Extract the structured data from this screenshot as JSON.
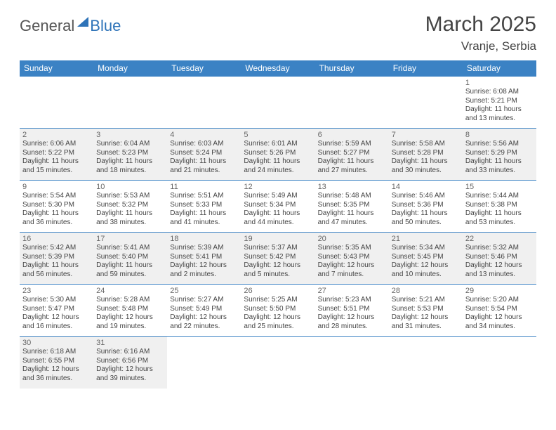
{
  "logo": {
    "part1": "General",
    "part2": "Blue"
  },
  "title": "March 2025",
  "location": "Vranje, Serbia",
  "dayHeaders": [
    "Sunday",
    "Monday",
    "Tuesday",
    "Wednesday",
    "Thursday",
    "Friday",
    "Saturday"
  ],
  "colors": {
    "header_bg": "#3b82c4",
    "accent": "#2e73b8",
    "shade": "#f0f0f0"
  },
  "weeks": [
    {
      "shaded": false,
      "days": [
        null,
        null,
        null,
        null,
        null,
        null,
        {
          "n": "1",
          "sunrise": "Sunrise: 6:08 AM",
          "sunset": "Sunset: 5:21 PM",
          "day1": "Daylight: 11 hours",
          "day2": "and 13 minutes."
        }
      ]
    },
    {
      "shaded": true,
      "days": [
        {
          "n": "2",
          "sunrise": "Sunrise: 6:06 AM",
          "sunset": "Sunset: 5:22 PM",
          "day1": "Daylight: 11 hours",
          "day2": "and 15 minutes."
        },
        {
          "n": "3",
          "sunrise": "Sunrise: 6:04 AM",
          "sunset": "Sunset: 5:23 PM",
          "day1": "Daylight: 11 hours",
          "day2": "and 18 minutes."
        },
        {
          "n": "4",
          "sunrise": "Sunrise: 6:03 AM",
          "sunset": "Sunset: 5:24 PM",
          "day1": "Daylight: 11 hours",
          "day2": "and 21 minutes."
        },
        {
          "n": "5",
          "sunrise": "Sunrise: 6:01 AM",
          "sunset": "Sunset: 5:26 PM",
          "day1": "Daylight: 11 hours",
          "day2": "and 24 minutes."
        },
        {
          "n": "6",
          "sunrise": "Sunrise: 5:59 AM",
          "sunset": "Sunset: 5:27 PM",
          "day1": "Daylight: 11 hours",
          "day2": "and 27 minutes."
        },
        {
          "n": "7",
          "sunrise": "Sunrise: 5:58 AM",
          "sunset": "Sunset: 5:28 PM",
          "day1": "Daylight: 11 hours",
          "day2": "and 30 minutes."
        },
        {
          "n": "8",
          "sunrise": "Sunrise: 5:56 AM",
          "sunset": "Sunset: 5:29 PM",
          "day1": "Daylight: 11 hours",
          "day2": "and 33 minutes."
        }
      ]
    },
    {
      "shaded": false,
      "days": [
        {
          "n": "9",
          "sunrise": "Sunrise: 5:54 AM",
          "sunset": "Sunset: 5:30 PM",
          "day1": "Daylight: 11 hours",
          "day2": "and 36 minutes."
        },
        {
          "n": "10",
          "sunrise": "Sunrise: 5:53 AM",
          "sunset": "Sunset: 5:32 PM",
          "day1": "Daylight: 11 hours",
          "day2": "and 38 minutes."
        },
        {
          "n": "11",
          "sunrise": "Sunrise: 5:51 AM",
          "sunset": "Sunset: 5:33 PM",
          "day1": "Daylight: 11 hours",
          "day2": "and 41 minutes."
        },
        {
          "n": "12",
          "sunrise": "Sunrise: 5:49 AM",
          "sunset": "Sunset: 5:34 PM",
          "day1": "Daylight: 11 hours",
          "day2": "and 44 minutes."
        },
        {
          "n": "13",
          "sunrise": "Sunrise: 5:48 AM",
          "sunset": "Sunset: 5:35 PM",
          "day1": "Daylight: 11 hours",
          "day2": "and 47 minutes."
        },
        {
          "n": "14",
          "sunrise": "Sunrise: 5:46 AM",
          "sunset": "Sunset: 5:36 PM",
          "day1": "Daylight: 11 hours",
          "day2": "and 50 minutes."
        },
        {
          "n": "15",
          "sunrise": "Sunrise: 5:44 AM",
          "sunset": "Sunset: 5:38 PM",
          "day1": "Daylight: 11 hours",
          "day2": "and 53 minutes."
        }
      ]
    },
    {
      "shaded": true,
      "days": [
        {
          "n": "16",
          "sunrise": "Sunrise: 5:42 AM",
          "sunset": "Sunset: 5:39 PM",
          "day1": "Daylight: 11 hours",
          "day2": "and 56 minutes."
        },
        {
          "n": "17",
          "sunrise": "Sunrise: 5:41 AM",
          "sunset": "Sunset: 5:40 PM",
          "day1": "Daylight: 11 hours",
          "day2": "and 59 minutes."
        },
        {
          "n": "18",
          "sunrise": "Sunrise: 5:39 AM",
          "sunset": "Sunset: 5:41 PM",
          "day1": "Daylight: 12 hours",
          "day2": "and 2 minutes."
        },
        {
          "n": "19",
          "sunrise": "Sunrise: 5:37 AM",
          "sunset": "Sunset: 5:42 PM",
          "day1": "Daylight: 12 hours",
          "day2": "and 5 minutes."
        },
        {
          "n": "20",
          "sunrise": "Sunrise: 5:35 AM",
          "sunset": "Sunset: 5:43 PM",
          "day1": "Daylight: 12 hours",
          "day2": "and 7 minutes."
        },
        {
          "n": "21",
          "sunrise": "Sunrise: 5:34 AM",
          "sunset": "Sunset: 5:45 PM",
          "day1": "Daylight: 12 hours",
          "day2": "and 10 minutes."
        },
        {
          "n": "22",
          "sunrise": "Sunrise: 5:32 AM",
          "sunset": "Sunset: 5:46 PM",
          "day1": "Daylight: 12 hours",
          "day2": "and 13 minutes."
        }
      ]
    },
    {
      "shaded": false,
      "days": [
        {
          "n": "23",
          "sunrise": "Sunrise: 5:30 AM",
          "sunset": "Sunset: 5:47 PM",
          "day1": "Daylight: 12 hours",
          "day2": "and 16 minutes."
        },
        {
          "n": "24",
          "sunrise": "Sunrise: 5:28 AM",
          "sunset": "Sunset: 5:48 PM",
          "day1": "Daylight: 12 hours",
          "day2": "and 19 minutes."
        },
        {
          "n": "25",
          "sunrise": "Sunrise: 5:27 AM",
          "sunset": "Sunset: 5:49 PM",
          "day1": "Daylight: 12 hours",
          "day2": "and 22 minutes."
        },
        {
          "n": "26",
          "sunrise": "Sunrise: 5:25 AM",
          "sunset": "Sunset: 5:50 PM",
          "day1": "Daylight: 12 hours",
          "day2": "and 25 minutes."
        },
        {
          "n": "27",
          "sunrise": "Sunrise: 5:23 AM",
          "sunset": "Sunset: 5:51 PM",
          "day1": "Daylight: 12 hours",
          "day2": "and 28 minutes."
        },
        {
          "n": "28",
          "sunrise": "Sunrise: 5:21 AM",
          "sunset": "Sunset: 5:53 PM",
          "day1": "Daylight: 12 hours",
          "day2": "and 31 minutes."
        },
        {
          "n": "29",
          "sunrise": "Sunrise: 5:20 AM",
          "sunset": "Sunset: 5:54 PM",
          "day1": "Daylight: 12 hours",
          "day2": "and 34 minutes."
        }
      ]
    },
    {
      "shaded": true,
      "days": [
        {
          "n": "30",
          "sunrise": "Sunrise: 6:18 AM",
          "sunset": "Sunset: 6:55 PM",
          "day1": "Daylight: 12 hours",
          "day2": "and 36 minutes."
        },
        {
          "n": "31",
          "sunrise": "Sunrise: 6:16 AM",
          "sunset": "Sunset: 6:56 PM",
          "day1": "Daylight: 12 hours",
          "day2": "and 39 minutes."
        },
        null,
        null,
        null,
        null,
        null
      ]
    }
  ]
}
